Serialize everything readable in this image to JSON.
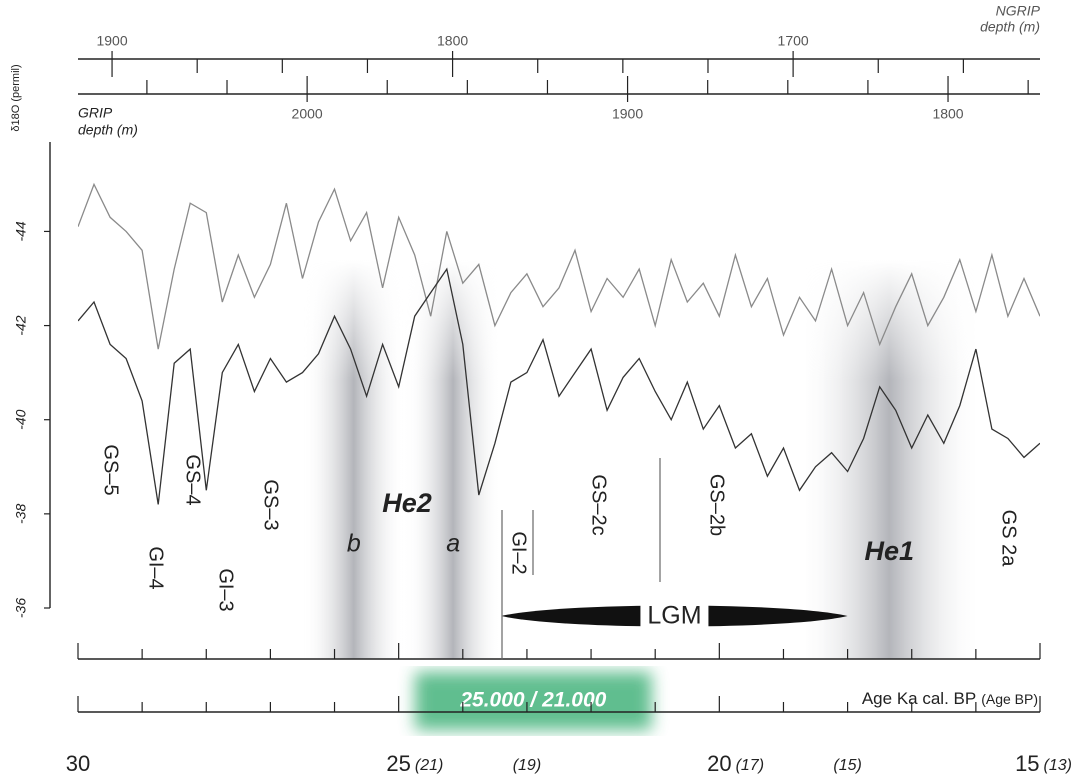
{
  "chart_data": {
    "type": "line",
    "ylabel": "δ18O (permil)",
    "xlabel": "Age Ka cal. BP",
    "xlabel_secondary": "(Age BP)",
    "x": [
      30,
      29.75,
      29.5,
      29.25,
      29,
      28.75,
      28.5,
      28.25,
      28,
      27.75,
      27.5,
      27.25,
      27,
      26.75,
      26.5,
      26.25,
      26,
      25.75,
      25.5,
      25.25,
      25,
      24.75,
      24.5,
      24.25,
      24,
      23.75,
      23.5,
      23.25,
      23,
      22.75,
      22.5,
      22.25,
      22,
      21.75,
      21.5,
      21.25,
      21,
      20.75,
      20.5,
      20.25,
      20,
      19.75,
      19.5,
      19.25,
      19,
      18.75,
      18.5,
      18.25,
      18,
      17.75,
      17.5,
      17.25,
      17,
      16.75,
      16.5,
      16.25,
      16,
      15.75,
      15.5,
      15.25,
      15
    ],
    "xlim": [
      30,
      15
    ],
    "xticks": [
      30,
      25,
      20,
      15
    ],
    "x_minor_ticks": [
      29,
      28,
      27,
      26,
      24,
      23,
      22,
      21,
      19,
      18,
      17,
      16
    ],
    "x_secondary_ticks": [
      {
        "value": 25,
        "label": "(21)"
      },
      {
        "value": 23,
        "label": "(19)"
      },
      {
        "value": 20,
        "label": "(17)"
      },
      {
        "value": 18,
        "label": "(15)"
      },
      {
        "value": 15,
        "label": "(13)"
      }
    ],
    "ylim": [
      -36,
      -45.9
    ],
    "yticks": [
      -44,
      -42,
      -40,
      -38,
      -36
    ],
    "series": [
      {
        "color": "#8a8a8a",
        "values": [
          -44.1,
          -45.0,
          -44.3,
          -44.0,
          -43.6,
          -41.5,
          -43.2,
          -44.6,
          -44.4,
          -42.5,
          -43.5,
          -42.6,
          -43.3,
          -44.6,
          -43.0,
          -44.2,
          -44.9,
          -43.8,
          -44.4,
          -42.8,
          -44.3,
          -43.5,
          -42.2,
          -44.0,
          -42.9,
          -43.3,
          -42.0,
          -42.7,
          -43.1,
          -42.4,
          -42.8,
          -43.6,
          -42.3,
          -43.0,
          -42.6,
          -43.2,
          -42.0,
          -43.4,
          -42.5,
          -42.9,
          -42.2,
          -43.5,
          -42.4,
          -43.0,
          -41.8,
          -42.6,
          -42.1,
          -43.2,
          -42.0,
          -42.7,
          -41.6,
          -42.4,
          -43.1,
          -42.0,
          -42.6,
          -43.4,
          -42.3,
          -43.5,
          -42.2,
          -43.0,
          -42.2
        ]
      },
      {
        "color": "#333333",
        "values": [
          -42.1,
          -42.5,
          -41.6,
          -41.3,
          -40.4,
          -38.2,
          -41.2,
          -41.5,
          -38.5,
          -41.0,
          -41.6,
          -40.6,
          -41.3,
          -40.8,
          -41.0,
          -41.4,
          -42.2,
          -41.5,
          -40.5,
          -41.6,
          -40.7,
          -42.2,
          -42.7,
          -43.2,
          -41.6,
          -38.4,
          -39.5,
          -40.8,
          -41.0,
          -41.7,
          -40.5,
          -41.0,
          -41.5,
          -40.2,
          -40.9,
          -41.3,
          -40.6,
          -40.0,
          -40.8,
          -39.8,
          -40.3,
          -39.4,
          -39.7,
          -38.8,
          -39.4,
          -38.5,
          -39.0,
          -39.3,
          -38.9,
          -39.6,
          -40.7,
          -40.2,
          -39.4,
          -40.1,
          -39.5,
          -40.3,
          -41.5,
          -39.8,
          -39.6,
          -39.2,
          -39.5
        ]
      }
    ],
    "top_axes": [
      {
        "label_lines": [
          "NGRIP",
          "depth (m)"
        ],
        "xlim": [
          1910,
          1627.5
        ],
        "xticks": [
          1900,
          1800,
          1700
        ],
        "minor_ticks": [
          1875,
          1850,
          1825,
          1775,
          1750,
          1725,
          1675,
          1650
        ]
      },
      {
        "label_lines": [
          "GRIP",
          "depth (m)"
        ],
        "xlim": [
          2071.5,
          1771.3
        ],
        "xticks": [
          2000,
          1900,
          1800
        ],
        "minor_ticks": [
          2050,
          2025,
          1975,
          1950,
          1925,
          1875,
          1850,
          1825,
          1775
        ]
      }
    ],
    "shaded_bands": [
      {
        "label": "b",
        "xlim": [
          26.5,
          24.9
        ]
      },
      {
        "label": "a",
        "xlim": [
          24.9,
          23.4
        ]
      },
      {
        "label": "He1",
        "xlim": [
          18.8,
          15.9
        ]
      }
    ],
    "highlight": {
      "label": "25.000 / 21.000",
      "xlim": [
        24.9,
        20.9
      ],
      "color": "#4fb783"
    },
    "lgm": {
      "label": "LGM",
      "xlim": [
        23.4,
        18.0
      ]
    },
    "annotations": [
      "GS–5",
      "GI–4",
      "GS–4",
      "GI–3",
      "GS–3",
      "He2",
      "GI–2",
      "GS–2c",
      "GS–2b",
      "GS 2a"
    ]
  }
}
